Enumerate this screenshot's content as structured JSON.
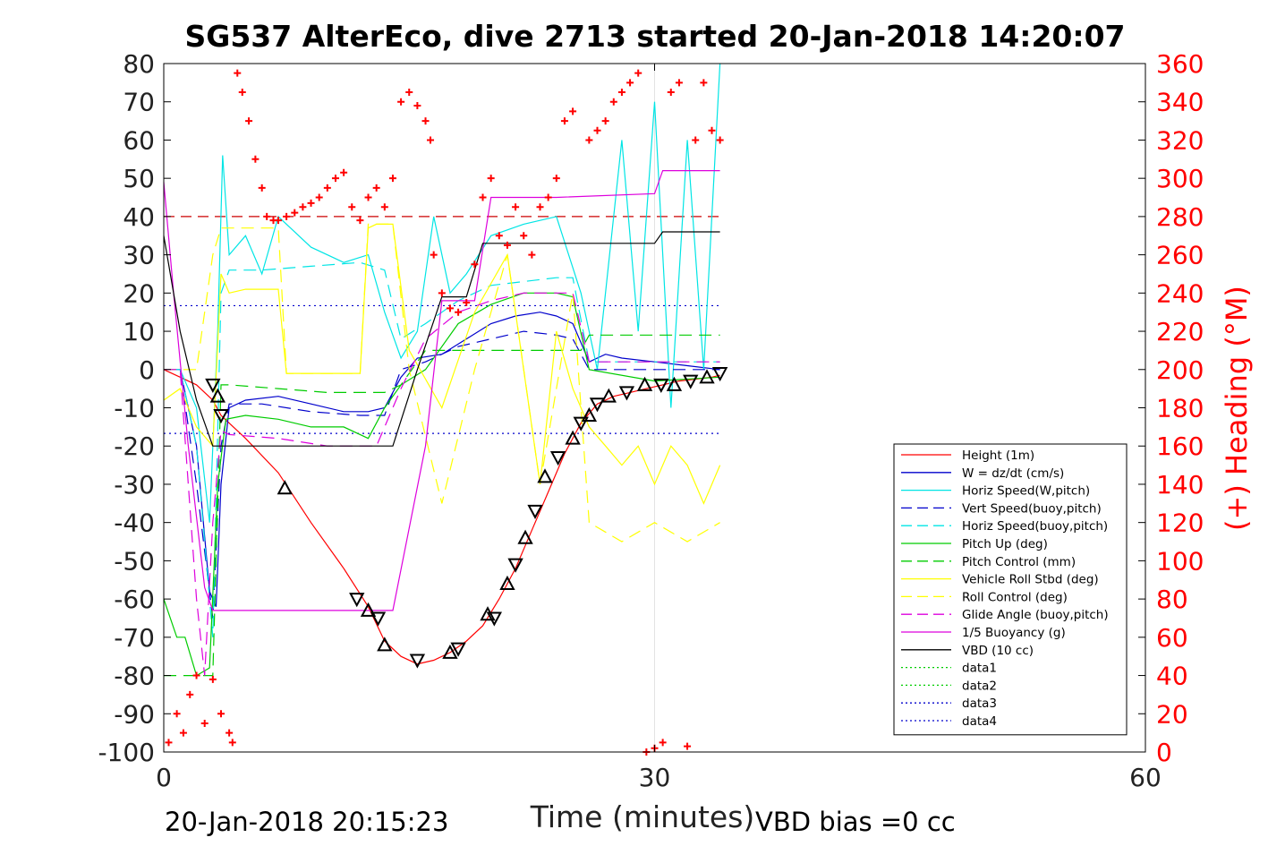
{
  "chart_data": {
    "type": "line",
    "title": "SG537 AlterEco, dive 2713 started 20-Jan-2018 14:20:07",
    "xlabel": "Time (minutes)",
    "ylabel_right": "(+) Heading (°M)",
    "footer_left": "20-Jan-2018 20:15:23",
    "footer_right": "VBD bias =0 cc",
    "xlim": [
      0,
      60
    ],
    "ylim_left": [
      -100,
      80
    ],
    "ylim_right": [
      0,
      360
    ],
    "xticks": [
      "0",
      "30",
      "60"
    ],
    "yticks_left": [
      "80",
      "70",
      "60",
      "50",
      "40",
      "30",
      "20",
      "10",
      "0",
      "-10",
      "-20",
      "-30",
      "-40",
      "-50",
      "-60",
      "-70",
      "-80",
      "-90",
      "-100"
    ],
    "yticks_right": [
      "360",
      "340",
      "320",
      "300",
      "280",
      "260",
      "240",
      "220",
      "200",
      "180",
      "160",
      "140",
      "120",
      "100",
      "80",
      "60",
      "40",
      "20",
      "0"
    ],
    "grid": "x-only at 30",
    "legend_position": "bottom-right",
    "colors": {
      "heading": "#ff0000",
      "right_axis": "#ff0000"
    },
    "legend": [
      {
        "label": "Height (1m)",
        "color": "#ff0000",
        "dash": "solid"
      },
      {
        "label": "W = dz/dt (cm/s)",
        "color": "#0000cc",
        "dash": "solid"
      },
      {
        "label": "Horiz Speed(W,pitch)",
        "color": "#00e5e5",
        "dash": "solid"
      },
      {
        "label": "Vert Speed(buoy,pitch)",
        "color": "#0000cc",
        "dash": "dashed"
      },
      {
        "label": "Horiz Speed(buoy,pitch)",
        "color": "#00e5e5",
        "dash": "dashed"
      },
      {
        "label": "Pitch Up (deg)",
        "color": "#00cc00",
        "dash": "solid"
      },
      {
        "label": "Pitch Control (mm)",
        "color": "#00cc00",
        "dash": "dashed"
      },
      {
        "label": "Vehicle Roll Stbd (deg)",
        "color": "#ffff00",
        "dash": "solid"
      },
      {
        "label": "Roll Control (deg)",
        "color": "#ffff00",
        "dash": "dashed"
      },
      {
        "label": "Glide Angle (buoy,pitch)",
        "color": "#dd00dd",
        "dash": "dashed"
      },
      {
        "label": "1/5 Buoyancy (g)",
        "color": "#dd00dd",
        "dash": "solid"
      },
      {
        "label": "VBD (10 cc)",
        "color": "#000000",
        "dash": "solid"
      },
      {
        "label": "data1",
        "color": "#00cc00",
        "dash": "dotted"
      },
      {
        "label": "data2",
        "color": "#00cc00",
        "dash": "dotted"
      },
      {
        "label": "data3",
        "color": "#0000cc",
        "dash": "dotted"
      },
      {
        "label": "data4",
        "color": "#0000cc",
        "dash": "dotted"
      }
    ],
    "reference_lines": [
      {
        "y": 40,
        "color": "#cc0000",
        "dash": "dashed"
      },
      {
        "y": 16.7,
        "color": "#0000cc",
        "dash": "dotted"
      },
      {
        "y": -16.7,
        "color": "#0000cc",
        "dash": "dotted"
      }
    ],
    "series": [
      {
        "name": "Height (1m)",
        "color": "#ff0000",
        "dash": "solid",
        "x": [
          0.0,
          1.0,
          2.0,
          3.0,
          3.5,
          4.0,
          5.0,
          7.0,
          9.0,
          11.0,
          12.5,
          13.5,
          14.5,
          15.5,
          16.5,
          17.5,
          18.5,
          19.5,
          20.5,
          21.5,
          22.5,
          23.5,
          24.5,
          25.5,
          26.5,
          27.5,
          28.5,
          29.5,
          30.5,
          31.5,
          32.5,
          33.5,
          34.0
        ],
        "y": [
          0,
          -2,
          -4,
          -8,
          -12,
          -14,
          -18,
          -27,
          -40,
          -52,
          -62,
          -71,
          -75,
          -77,
          -76,
          -74,
          -71,
          -67,
          -60,
          -52,
          -42,
          -32,
          -22,
          -14,
          -9,
          -7,
          -6,
          -5,
          -4,
          -3,
          -2.5,
          -2,
          -1.5
        ]
      },
      {
        "name": "W = dz/dt (cm/s)",
        "color": "#0000cc",
        "dash": "solid",
        "x": [
          0,
          1,
          2,
          2.8,
          3.2,
          3.5,
          4,
          5,
          7,
          9,
          11,
          12.5,
          13.5,
          14.5,
          15.5,
          17,
          18.5,
          20,
          21.5,
          23,
          24,
          25,
          26,
          27,
          28,
          30,
          32,
          34
        ],
        "y": [
          0,
          0,
          -20,
          -58,
          -62,
          -30,
          -10,
          -8,
          -7,
          -9,
          -11,
          -11,
          -10,
          -2,
          3,
          4,
          8,
          12,
          14,
          15,
          14,
          12,
          2,
          4,
          3,
          2,
          1,
          0
        ]
      },
      {
        "name": "Horiz Speed(W,pitch)",
        "color": "#00e5e5",
        "dash": "solid",
        "x": [
          0,
          1,
          2,
          2.8,
          3.3,
          3.6,
          4,
          5,
          6,
          7,
          9,
          11,
          12.5,
          13.5,
          14.5,
          15.5,
          16.5,
          17.5,
          18.5,
          20,
          22,
          24,
          25.5,
          26.5,
          28,
          29,
          30,
          31,
          32,
          33,
          34
        ],
        "y": [
          0,
          0,
          -10,
          -40,
          10,
          56,
          30,
          35,
          25,
          40,
          32,
          28,
          30,
          15,
          3,
          10,
          40,
          20,
          25,
          35,
          38,
          40,
          20,
          0,
          60,
          10,
          70,
          -10,
          60,
          0,
          80
        ]
      },
      {
        "name": "Vert Speed(buoy,pitch)",
        "color": "#0000cc",
        "dash": "dashed",
        "x": [
          0,
          1,
          2,
          3,
          3.5,
          4,
          6,
          9,
          12,
          13.5,
          14.5,
          16,
          18,
          20,
          22,
          24,
          25,
          26,
          30,
          34
        ],
        "y": [
          0,
          0,
          -30,
          -65,
          -20,
          -9,
          -9,
          -11,
          -12,
          -12,
          0,
          2,
          6,
          8,
          10,
          9,
          8,
          0,
          0,
          0
        ]
      },
      {
        "name": "Horiz Speed(buoy,pitch)",
        "color": "#00e5e5",
        "dash": "dashed",
        "x": [
          0,
          1,
          2,
          3,
          3.5,
          4,
          6,
          9,
          12,
          13.5,
          14.5,
          16,
          18,
          20,
          22,
          24,
          25,
          26,
          30,
          34
        ],
        "y": [
          0,
          0,
          -20,
          -70,
          20,
          26,
          26,
          27,
          28,
          26,
          8,
          12,
          18,
          22,
          23,
          24,
          24,
          2,
          2,
          2
        ]
      },
      {
        "name": "Pitch Up (deg)",
        "color": "#00cc00",
        "dash": "solid",
        "x": [
          0,
          0.8,
          1.3,
          2,
          2.8,
          3.3,
          3.8,
          5,
          7,
          9,
          11,
          12.5,
          13.5,
          14.5,
          16,
          18,
          20,
          22,
          24,
          25,
          26,
          30,
          34
        ],
        "y": [
          -60,
          -70,
          -70,
          -80,
          -78,
          -30,
          -13,
          -12,
          -13,
          -15,
          -15,
          -18,
          -10,
          -4,
          0,
          12,
          17,
          20,
          20,
          19,
          0,
          -3,
          -2
        ]
      },
      {
        "name": "Pitch Control (mm)",
        "color": "#00cc00",
        "dash": "dashed",
        "x": [
          0,
          1,
          2,
          3,
          3.5,
          4,
          7,
          10,
          13.5,
          14.5,
          16,
          20,
          24,
          25.5,
          26,
          34
        ],
        "y": [
          -80,
          -80,
          -80,
          -80,
          -4,
          -4,
          -5,
          -6,
          -6,
          -4,
          5,
          5,
          5,
          5,
          9,
          9
        ]
      },
      {
        "name": "Vehicle Roll Stbd (deg)",
        "color": "#ffff00",
        "dash": "solid",
        "x": [
          0,
          1,
          2,
          3,
          3.5,
          4,
          5,
          6,
          7,
          7.5,
          9,
          11,
          12,
          12.5,
          13,
          14,
          15,
          17,
          19,
          21,
          22,
          23,
          24,
          25,
          26,
          27,
          28,
          29,
          30,
          31,
          32,
          33,
          34
        ],
        "y": [
          -8,
          -5,
          -15,
          -20,
          25,
          20,
          21,
          21,
          21,
          -1,
          -1,
          -1,
          -1,
          37,
          38,
          38,
          5,
          -10,
          15,
          30,
          0,
          -30,
          10,
          -5,
          -15,
          -20,
          -25,
          -20,
          -30,
          -20,
          -25,
          -35,
          -25
        ]
      },
      {
        "name": "Roll Control (deg)",
        "color": "#ffff00",
        "dash": "dashed",
        "x": [
          0,
          2,
          3,
          3.5,
          5,
          7,
          7.5,
          10,
          12,
          12.5,
          14,
          15,
          17,
          19,
          21,
          23,
          25,
          26,
          28,
          30,
          32,
          34
        ],
        "y": [
          0,
          0,
          30,
          37,
          37,
          37,
          -1,
          -1,
          -1,
          38,
          38,
          0,
          -35,
          0,
          30,
          -30,
          20,
          -40,
          -45,
          -40,
          -45,
          -40
        ]
      },
      {
        "name": "Glide Angle (buoy,pitch)",
        "color": "#dd00dd",
        "dash": "dashed",
        "x": [
          0,
          1,
          1.5,
          2,
          2.5,
          3,
          3.5,
          4,
          7,
          10,
          13,
          14.5,
          16,
          18,
          20,
          22,
          24,
          25,
          26,
          30,
          34
        ],
        "y": [
          0,
          0,
          -30,
          -60,
          -80,
          -40,
          -16,
          -17,
          -18,
          -20,
          -20,
          -5,
          8,
          15,
          18,
          20,
          20,
          20,
          2,
          2,
          2
        ]
      },
      {
        "name": "1/5 Buoyancy (g)",
        "color": "#dd00dd",
        "dash": "solid",
        "x": [
          0,
          0.6,
          1.5,
          2.5,
          3.0,
          6.0,
          12.5,
          14.0,
          16.0,
          17.0,
          19.0,
          20.0,
          24.0,
          30.0,
          30.5,
          34.0
        ],
        "y": [
          49,
          20,
          -20,
          -57,
          -63,
          -63,
          -63,
          -63,
          -20,
          18,
          18,
          45,
          45,
          46,
          52,
          52
        ]
      },
      {
        "name": "VBD (10 cc)",
        "color": "#000000",
        "dash": "solid",
        "x": [
          0,
          1.0,
          2.0,
          3.0,
          10.0,
          14.0,
          15.5,
          17.0,
          18.5,
          19.5,
          25.0,
          25.6,
          30.0,
          30.5,
          34.0
        ],
        "y": [
          35,
          10,
          -8,
          -20,
          -20,
          -20,
          0,
          19,
          19,
          33,
          33,
          33,
          33,
          36,
          36
        ]
      }
    ],
    "heading_series": {
      "name": "Heading (°M)",
      "axis": "right",
      "marker": "+",
      "color": "#ff0000",
      "x": [
        0.3,
        0.8,
        1.2,
        1.6,
        2.0,
        2.5,
        3.0,
        3.5,
        4.0,
        4.2,
        4.5,
        4.8,
        5.2,
        5.6,
        6.0,
        6.3,
        6.7,
        7.0,
        7.5,
        8.0,
        8.5,
        9.0,
        9.5,
        10.0,
        10.5,
        11.0,
        11.5,
        12.0,
        12.5,
        13.0,
        13.5,
        14.0,
        14.5,
        15.0,
        15.5,
        16.0,
        16.3,
        16.5,
        17.0,
        17.5,
        18.0,
        18.5,
        19.0,
        19.5,
        20.0,
        20.5,
        21.0,
        21.5,
        22.0,
        22.5,
        23.0,
        23.5,
        24.0,
        24.5,
        25.0,
        26.0,
        26.5,
        27.0,
        27.5,
        28.0,
        28.5,
        29.0,
        29.5,
        30.0,
        30.5,
        31.0,
        31.5,
        32.0,
        32.5,
        33.0,
        33.5,
        34.0
      ],
      "y": [
        5,
        20,
        10,
        30,
        40,
        15,
        38,
        20,
        10,
        5,
        355,
        345,
        330,
        310,
        295,
        280,
        278,
        278,
        280,
        282,
        285,
        287,
        290,
        295,
        300,
        303,
        285,
        278,
        290,
        295,
        285,
        300,
        340,
        345,
        338,
        330,
        320,
        260,
        240,
        232,
        230,
        235,
        255,
        290,
        300,
        270,
        265,
        285,
        270,
        260,
        285,
        290,
        300,
        330,
        335,
        320,
        325,
        330,
        340,
        345,
        350,
        355,
        0,
        2,
        5,
        345,
        350,
        3,
        320,
        350,
        325,
        320
      ]
    },
    "profile_markers": {
      "name": "dive markers",
      "marker": "triangle",
      "color": "#000000",
      "x": [
        3.0,
        3.3,
        3.5,
        7.4,
        11.8,
        12.5,
        13.1,
        13.5,
        15.5,
        17.5,
        18.0,
        19.8,
        20.2,
        21.0,
        21.5,
        22.1,
        22.7,
        23.3,
        24.1,
        25.0,
        25.5,
        26.0,
        26.5,
        27.2,
        28.3,
        29.4,
        30.4,
        31.2,
        32.2,
        33.2,
        34.0
      ],
      "y": [
        -4,
        -7,
        -12,
        -31,
        -60,
        -63,
        -65,
        -72,
        -76,
        -74,
        -73,
        -64,
        -65,
        -56,
        -51,
        -44,
        -37,
        -28,
        -23,
        -18,
        -14,
        -12,
        -9,
        -7,
        -6,
        -4,
        -4,
        -4,
        -3,
        -2,
        -1
      ]
    }
  }
}
